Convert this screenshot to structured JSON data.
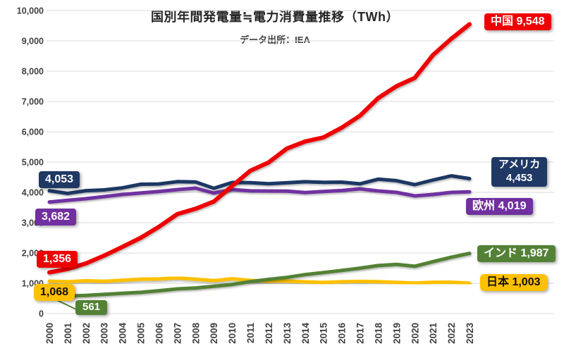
{
  "title": "国別年間発電量≒電力消費量推移（TWh）",
  "subtitle": "データ出所：IEA",
  "chart_data": {
    "type": "line",
    "title": "国別年間発電量≒電力消費量推移（TWh）",
    "subtitle": "データ出所：IEA",
    "x": [
      2000,
      2001,
      2002,
      2003,
      2004,
      2005,
      2006,
      2007,
      2008,
      2009,
      2010,
      2011,
      2012,
      2013,
      2014,
      2015,
      2016,
      2017,
      2018,
      2019,
      2020,
      2021,
      2022,
      2023
    ],
    "ylim": [
      0,
      10000
    ],
    "ytick_step": 1000,
    "grid": true,
    "legend_position": "inline-end-labels",
    "colors": {
      "china": "#ee0000",
      "usa": "#1f3864",
      "europe": "#7030a0",
      "india": "#538135",
      "japan": "#ffc000",
      "gridline": "#d9d9d9",
      "axis_text": "#404040"
    },
    "series": [
      {
        "key": "china",
        "name": "中国",
        "color": "#ee0000",
        "values": [
          1356,
          1472,
          1654,
          1911,
          2203,
          2500,
          2866,
          3282,
          3457,
          3696,
          4207,
          4713,
          4988,
          5447,
          5678,
          5815,
          6133,
          6529,
          7111,
          7503,
          7779,
          8534,
          9070,
          9548
        ],
        "start_label": "1,356",
        "end_label": "中国 9,548"
      },
      {
        "key": "usa",
        "name": "アメリカ",
        "color": "#1f3864",
        "values": [
          4053,
          3965,
          4056,
          4082,
          4148,
          4268,
          4277,
          4353,
          4344,
          4134,
          4325,
          4319,
          4285,
          4316,
          4350,
          4331,
          4337,
          4281,
          4434,
          4385,
          4255,
          4406,
          4547,
          4453
        ],
        "start_label": "4,053",
        "end_label": "アメリカ 4,453"
      },
      {
        "key": "europe",
        "name": "欧州",
        "color": "#7030a0",
        "values": [
          3682,
          3740,
          3790,
          3860,
          3930,
          3980,
          4030,
          4090,
          4140,
          3977,
          4093,
          4050,
          4045,
          4040,
          3995,
          4030,
          4060,
          4116,
          4047,
          4000,
          3884,
          3930,
          4000,
          4019
        ],
        "start_label": "3,682",
        "end_label": "欧州 4,019"
      },
      {
        "key": "india",
        "name": "インド",
        "color": "#538135",
        "values": [
          561,
          580,
          597,
          634,
          668,
          699,
          753,
          814,
          843,
          899,
          960,
          1053,
          1128,
          1193,
          1287,
          1354,
          1423,
          1497,
          1583,
          1623,
          1560,
          1714,
          1858,
          1987
        ],
        "start_label": "561",
        "end_label": "インド 1,987"
      },
      {
        "key": "japan",
        "name": "日本",
        "color": "#ffc000",
        "values": [
          1068,
          1048,
          1082,
          1065,
          1099,
          1134,
          1143,
          1176,
          1136,
          1086,
          1148,
          1094,
          1069,
          1074,
          1046,
          1026,
          1048,
          1060,
          1051,
          1028,
          1004,
          1032,
          1034,
          1003
        ],
        "start_label": "1,068",
        "end_label": "日本 1,003"
      }
    ]
  },
  "badges": {
    "china_start": "1,356",
    "usa_start": "4,053",
    "europe_start": "3,682",
    "japan_start": "1,068",
    "india_start": "561",
    "china_end": "中国 9,548",
    "usa_end_line1": "アメリカ",
    "usa_end_line2": "4,453",
    "europe_end": "欧州 4,019",
    "india_end": "インド 1,987",
    "japan_end": "日本 1,003"
  }
}
